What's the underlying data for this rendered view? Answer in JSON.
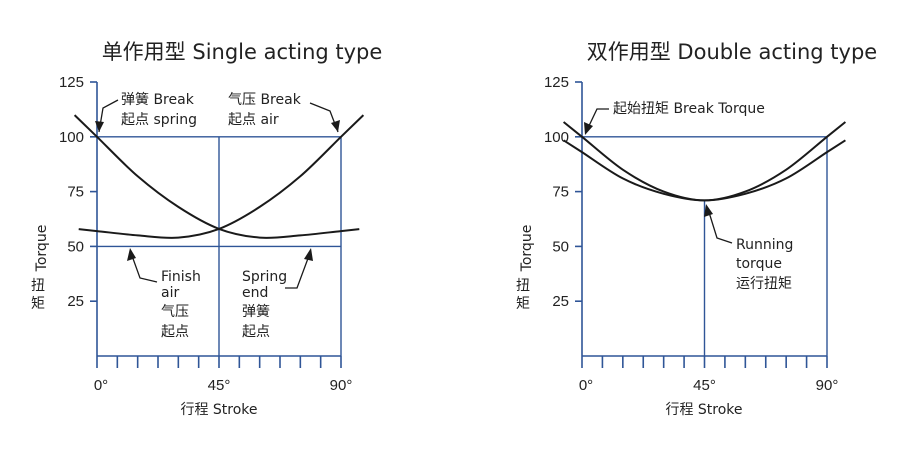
{
  "chart_data": [
    {
      "type": "line",
      "title": "单作用型 Single acting type",
      "ylabel_lines": [
        "Torque",
        "扭",
        "矩"
      ],
      "xlabel": "行程 Stroke",
      "x_ticks": [
        "0°",
        "45°",
        "90°"
      ],
      "y_ticks": [
        25,
        50,
        75,
        100,
        125
      ],
      "xlim": [
        0,
        90
      ],
      "ylim": [
        0,
        125
      ],
      "grid": {
        "x": [
          45,
          90
        ],
        "y": [
          50,
          100
        ]
      },
      "series": [
        {
          "x": [
            0,
            15,
            30,
            45,
            60,
            75,
            90
          ],
          "values": [
            100,
            82,
            68,
            58,
            54,
            55,
            57
          ]
        },
        {
          "x": [
            0,
            15,
            30,
            45,
            60,
            75,
            90
          ],
          "values": [
            57,
            55,
            54,
            58,
            68,
            82,
            100
          ]
        }
      ],
      "annotations": [
        {
          "lines": [
            "弹簧 Break",
            "起点 spring"
          ]
        },
        {
          "lines": [
            "气压 Break",
            "起点 air"
          ]
        },
        {
          "lines": [
            "Finish",
            "air",
            "气压",
            "起点"
          ]
        },
        {
          "lines": [
            "Spring",
            "end",
            "弹簧",
            "起点"
          ]
        }
      ]
    },
    {
      "type": "line",
      "title": "双作用型 Double acting type",
      "ylabel_lines": [
        "Torque",
        "扭",
        "矩"
      ],
      "xlabel": "行程 Stroke",
      "x_ticks": [
        "0°",
        "45°",
        "90°"
      ],
      "y_ticks": [
        25,
        50,
        75,
        100,
        125
      ],
      "xlim": [
        0,
        90
      ],
      "ylim": [
        0,
        125
      ],
      "grid": {
        "x": [
          45,
          90
        ],
        "y": [
          100
        ]
      },
      "series": [
        {
          "x": [
            0,
            15,
            30,
            45,
            60,
            75,
            90
          ],
          "values": [
            100,
            85,
            75,
            71,
            75,
            85,
            100
          ]
        },
        {
          "x": [
            0,
            15,
            30,
            45,
            60,
            75,
            90
          ],
          "values": [
            93,
            81,
            74,
            71,
            74,
            81,
            93
          ]
        }
      ],
      "annotations": [
        {
          "lines": [
            "起始扭矩 Break Torque"
          ]
        },
        {
          "lines": [
            "Running",
            "torque",
            "运行扭矩"
          ]
        }
      ]
    }
  ]
}
